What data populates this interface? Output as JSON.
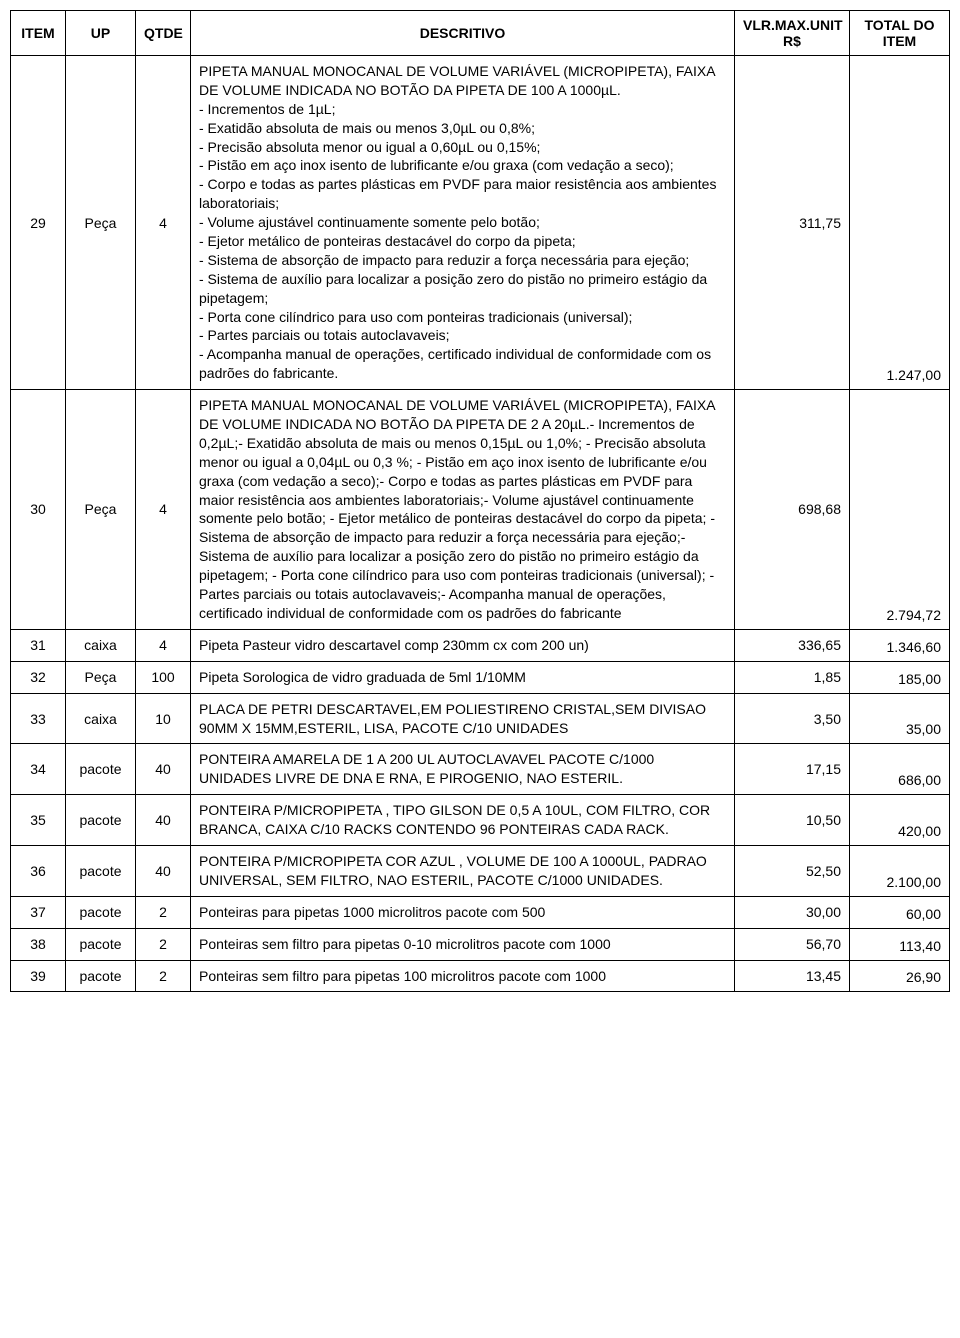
{
  "table": {
    "headers": {
      "item": "ITEM",
      "up": "UP",
      "qtde": "QTDE",
      "descritivo": "DESCRITIVO",
      "vlr_max_unit": "VLR.MAX.UNIT R$",
      "total": "TOTAL DO ITEM"
    },
    "rows": [
      {
        "item": "29",
        "up": "Peça",
        "qtde": "4",
        "descritivo": "PIPETA MANUAL MONOCANAL DE VOLUME VARIÁVEL (MICROPIPETA), FAIXA DE VOLUME INDICADA NO BOTÃO DA PIPETA DE 100 A 1000µL.\n- Incrementos de 1µL;\n- Exatidão absoluta de mais ou menos 3,0µL ou 0,8%;\n- Precisão absoluta menor ou igual a 0,60µL ou 0,15%;\n- Pistão em aço inox isento de lubrificante e/ou graxa (com vedação a seco);\n- Corpo e todas as partes plásticas em PVDF para maior resistência aos ambientes laboratoriais;\n- Volume ajustável continuamente somente pelo botão;\n- Ejetor metálico de ponteiras destacável do corpo da pipeta;\n- Sistema de absorção de impacto para reduzir a força necessária para ejeção;\n- Sistema de auxílio para localizar a posição zero do pistão no primeiro estágio da pipetagem;\n- Porta cone cilíndrico para uso com ponteiras tradicionais (universal);\n- Partes parciais ou totais autoclavaveis;\n- Acompanha manual de operações, certificado individual de conformidade com os padrões do fabricante.",
        "vlr_max_unit": "311,75",
        "total": "1.247,00"
      },
      {
        "item": "30",
        "up": "Peça",
        "qtde": "4",
        "descritivo": "PIPETA MANUAL MONOCANAL DE VOLUME VARIÁVEL (MICROPIPETA), FAIXA DE VOLUME INDICADA NO BOTÃO DA PIPETA DE 2 A 20µL.- Incrementos de 0,2µL;- Exatidão absoluta de mais ou menos 0,15µL ou 1,0%; - Precisão absoluta menor ou igual a 0,04µL ou 0,3 %; - Pistão em aço inox isento de lubrificante e/ou graxa (com vedação a seco);- Corpo e todas as partes plásticas em PVDF para maior resistência aos ambientes laboratoriais;- Volume ajustável continuamente somente pelo botão; - Ejetor metálico de ponteiras destacável do corpo da pipeta; - Sistema de absorção de impacto para reduzir a força necessária para ejeção;- Sistema de auxílio para localizar a posição zero do pistão no primeiro estágio da pipetagem; - Porta cone cilíndrico para uso com ponteiras tradicionais (universal); - Partes parciais ou totais autoclavaveis;- Acompanha manual de operações, certificado individual de conformidade com os padrões do fabricante",
        "vlr_max_unit": "698,68",
        "total": "2.794,72"
      },
      {
        "item": "31",
        "up": "caixa",
        "qtde": "4",
        "descritivo": "Pipeta Pasteur vidro descartavel comp 230mm cx com 200 un)",
        "vlr_max_unit": "336,65",
        "total": "1.346,60"
      },
      {
        "item": "32",
        "up": "Peça",
        "qtde": "100",
        "descritivo": "Pipeta Sorologica de vidro graduada de 5ml 1/10MM",
        "vlr_max_unit": "1,85",
        "total": "185,00"
      },
      {
        "item": "33",
        "up": "caixa",
        "qtde": "10",
        "descritivo": "PLACA DE PETRI DESCARTAVEL,EM POLIESTIRENO CRISTAL,SEM DIVISAO 90MM X 15MM,ESTERIL, LISA, PACOTE C/10 UNIDADES",
        "vlr_max_unit": "3,50",
        "total": "35,00"
      },
      {
        "item": "34",
        "up": "pacote",
        "qtde": "40",
        "descritivo": "PONTEIRA AMARELA DE 1 A 200 UL AUTOCLAVAVEL PACOTE C/1000 UNIDADES LIVRE DE DNA E RNA, E PIROGENIO, NAO ESTERIL.",
        "vlr_max_unit": "17,15",
        "total": "686,00"
      },
      {
        "item": "35",
        "up": "pacote",
        "qtde": "40",
        "descritivo": "PONTEIRA P/MICROPIPETA , TIPO GILSON DE 0,5 A 10UL, COM FILTRO, COR BRANCA, CAIXA C/10 RACKS CONTENDO 96 PONTEIRAS CADA RACK.",
        "vlr_max_unit": "10,50",
        "total": "420,00"
      },
      {
        "item": "36",
        "up": "pacote",
        "qtde": "40",
        "descritivo": "PONTEIRA P/MICROPIPETA COR AZUL , VOLUME DE 100 A 1000UL, PADRAO UNIVERSAL, SEM FILTRO, NAO ESTERIL, PACOTE C/1000 UNIDADES.",
        "vlr_max_unit": "52,50",
        "total": "2.100,00"
      },
      {
        "item": "37",
        "up": "pacote",
        "qtde": "2",
        "descritivo": "Ponteiras para pipetas 1000 microlitros pacote com 500",
        "vlr_max_unit": "30,00",
        "total": "60,00"
      },
      {
        "item": "38",
        "up": "pacote",
        "qtde": "2",
        "descritivo": "Ponteiras sem filtro para pipetas 0-10 microlitros pacote com 1000",
        "vlr_max_unit": "56,70",
        "total": "113,40"
      },
      {
        "item": "39",
        "up": "pacote",
        "qtde": "2",
        "descritivo": "Ponteiras sem filtro para pipetas 100 microlitros pacote com 1000",
        "vlr_max_unit": "13,45",
        "total": "26,90"
      }
    ]
  }
}
